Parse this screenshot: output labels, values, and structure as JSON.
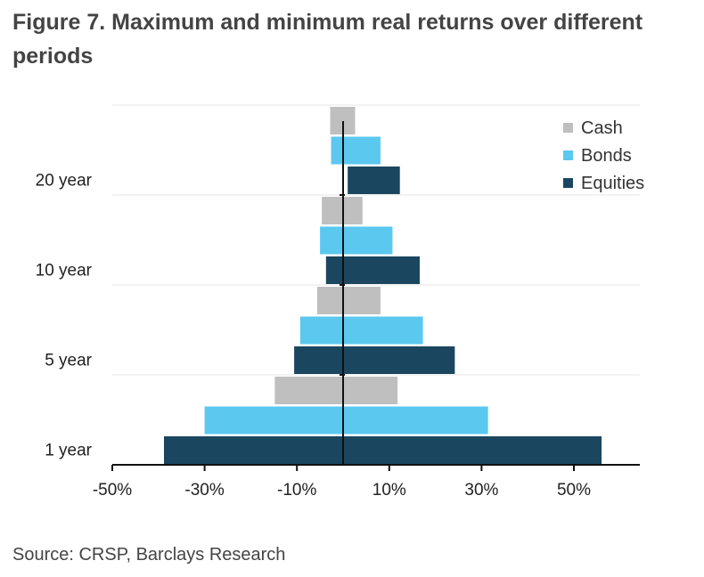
{
  "chart_data": {
    "type": "bar",
    "orientation": "horizontal",
    "title": "Figure 7. Maximum and minimum real returns over different periods",
    "source": "Source: CRSP, Barclays Research",
    "categories": [
      "20 year",
      "10 year",
      "5 year",
      "1 year"
    ],
    "series": [
      {
        "name": "Cash",
        "color": "#bfbfbf",
        "min": [
          -2.8,
          -4.6,
          -5.6,
          -14.8
        ],
        "max": [
          2.6,
          4.2,
          8.1,
          11.8
        ]
      },
      {
        "name": "Bonds",
        "color": "#5bc8f0",
        "min": [
          -2.6,
          -5.0,
          -9.3,
          -30.0
        ],
        "max": [
          8.1,
          10.7,
          17.3,
          31.4
        ]
      },
      {
        "name": "Equities",
        "color": "#1b4660",
        "min": [
          1.0,
          -3.7,
          -10.6,
          -38.8
        ],
        "max": [
          12.3,
          16.6,
          24.2,
          56.0
        ]
      }
    ],
    "xlim": [
      -50,
      65
    ],
    "xticks": [
      -50,
      -30,
      -10,
      10,
      30,
      50
    ],
    "xtick_labels": [
      "-50%",
      "-30%",
      "-10%",
      "10%",
      "30%",
      "50%"
    ],
    "grid": true,
    "legend_position": "top-right"
  }
}
